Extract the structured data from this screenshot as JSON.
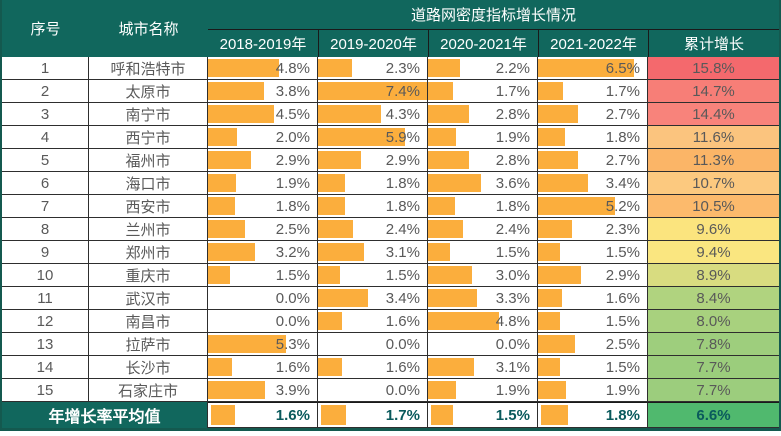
{
  "chart_data": {
    "type": "table",
    "title": "道路网密度指标增长情况",
    "header": {
      "index": "序号",
      "city": "城市名称",
      "years": [
        "2018-2019年",
        "2019-2020年",
        "2020-2021年",
        "2021-2022年"
      ],
      "cumulative": "累计增长"
    },
    "unit": "%",
    "bar_axis_max": 7.4,
    "rows": [
      {
        "no": "1",
        "city": "呼和浩特市",
        "growth": [
          4.8,
          2.3,
          2.2,
          6.5
        ],
        "cumulative": 15.8,
        "cumulative_color": "#F4696D"
      },
      {
        "no": "2",
        "city": "太原市",
        "growth": [
          3.8,
          7.4,
          1.7,
          1.7
        ],
        "cumulative": 14.7,
        "cumulative_color": "#F77E77"
      },
      {
        "no": "3",
        "city": "南宁市",
        "growth": [
          4.5,
          4.3,
          2.8,
          2.7
        ],
        "cumulative": 14.4,
        "cumulative_color": "#F8837B"
      },
      {
        "no": "4",
        "city": "西宁市",
        "growth": [
          2.0,
          5.9,
          1.9,
          1.8
        ],
        "cumulative": 11.6,
        "cumulative_color": "#FBC47E"
      },
      {
        "no": "5",
        "city": "福州市",
        "growth": [
          2.9,
          2.9,
          2.8,
          2.7
        ],
        "cumulative": 11.3,
        "cumulative_color": "#FBB567"
      },
      {
        "no": "6",
        "city": "海口市",
        "growth": [
          1.9,
          1.8,
          3.6,
          3.4
        ],
        "cumulative": 10.7,
        "cumulative_color": "#FCC97F"
      },
      {
        "no": "7",
        "city": "西安市",
        "growth": [
          1.8,
          1.8,
          1.8,
          5.2
        ],
        "cumulative": 10.5,
        "cumulative_color": "#FCBA6C"
      },
      {
        "no": "8",
        "city": "兰州市",
        "growth": [
          2.5,
          2.4,
          2.4,
          2.3
        ],
        "cumulative": 9.6,
        "cumulative_color": "#FBE47E"
      },
      {
        "no": "9",
        "city": "郑州市",
        "growth": [
          3.2,
          3.1,
          1.5,
          1.5
        ],
        "cumulative": 9.4,
        "cumulative_color": "#FAE680"
      },
      {
        "no": "10",
        "city": "重庆市",
        "growth": [
          1.5,
          1.5,
          3.0,
          2.9
        ],
        "cumulative": 8.9,
        "cumulative_color": "#D8DC80"
      },
      {
        "no": "11",
        "city": "武汉市",
        "growth": [
          0.0,
          3.4,
          3.3,
          1.6
        ],
        "cumulative": 8.4,
        "cumulative_color": "#B0D37F"
      },
      {
        "no": "12",
        "city": "南昌市",
        "growth": [
          0.0,
          1.6,
          4.8,
          1.5
        ],
        "cumulative": 8.0,
        "cumulative_color": "#A8D17E"
      },
      {
        "no": "13",
        "city": "拉萨市",
        "growth": [
          5.3,
          0.0,
          0.0,
          2.5
        ],
        "cumulative": 7.8,
        "cumulative_color": "#9ECE7D"
      },
      {
        "no": "14",
        "city": "长沙市",
        "growth": [
          1.6,
          1.6,
          3.1,
          1.5
        ],
        "cumulative": 7.7,
        "cumulative_color": "#9BCD7C"
      },
      {
        "no": "15",
        "city": "石家庄市",
        "growth": [
          3.9,
          0.0,
          1.9,
          1.9
        ],
        "cumulative": 7.7,
        "cumulative_color": "#9CCD7D"
      }
    ],
    "footer": {
      "label": "年增长率平均值",
      "growth": [
        1.6,
        1.7,
        1.5,
        1.8
      ],
      "cumulative": 6.6,
      "cumulative_color": "#50B96E"
    },
    "legend_note": "orange data bars scaled to column max 7.4%; cumulative column red-to-green color scale"
  },
  "colors": {
    "header_bg": "#11675D",
    "bar_orange": "#FBAE3D",
    "grid_border": "#2E2E2E",
    "outer_border": "#14594F",
    "value_text": "#595959",
    "footer_value_text": "#0A5A5C"
  }
}
